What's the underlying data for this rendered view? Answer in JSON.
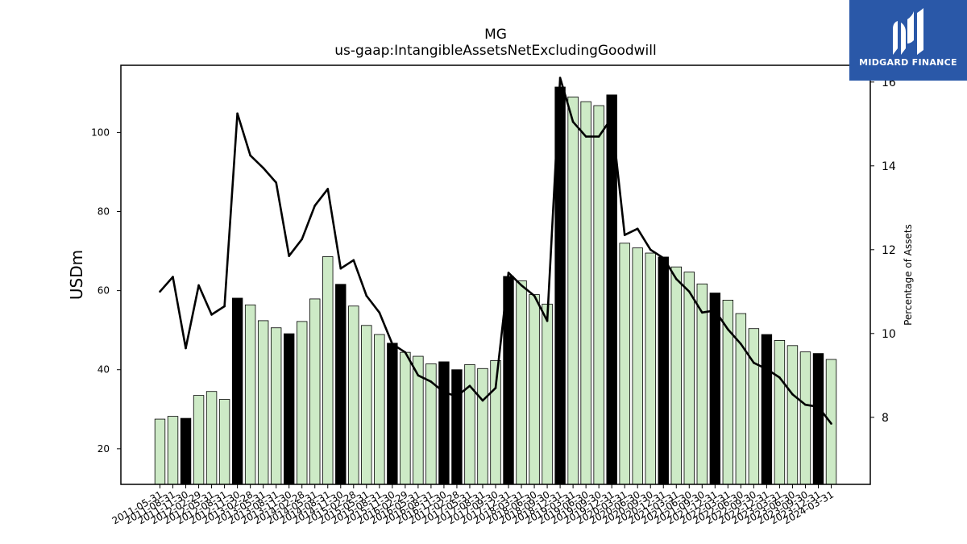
{
  "logo": {
    "text": "MIDGARD FINANCE",
    "color": "#2a58a8"
  },
  "chart_data": {
    "type": "bar",
    "title": "MG",
    "subtitle": "us-gaap:IntangibleAssetsNetExcludingGoodwill",
    "ylabel": "USDm",
    "y2label": "Percentage of Assets",
    "ylim": [
      11,
      117
    ],
    "y2lim": [
      6.4,
      16.4
    ],
    "yticks": [
      20,
      40,
      60,
      80,
      100
    ],
    "y2ticks": [
      8,
      10,
      12,
      14,
      16
    ],
    "grid": false,
    "colors": {
      "bar_light": "#cdeac6",
      "bar_dark": "#000000",
      "line": "#000000"
    },
    "categories": [
      "2011-05-31",
      "2011-08-31",
      "2011-11-30",
      "2012-02-29",
      "2012-05-31",
      "2012-08-31",
      "2012-11-30",
      "2013-02-28",
      "2013-05-31",
      "2013-08-31",
      "2013-11-30",
      "2014-02-28",
      "2014-05-31",
      "2014-08-31",
      "2014-11-30",
      "2015-02-28",
      "2015-05-31",
      "2015-08-31",
      "2015-11-30",
      "2016-02-29",
      "2016-05-31",
      "2016-08-31",
      "2016-11-30",
      "2017-02-28",
      "2017-05-31",
      "2017-08-31",
      "2017-09-30",
      "2017-12-31",
      "2018-03-31",
      "2018-06-30",
      "2018-09-30",
      "2018-12-31",
      "2019-03-31",
      "2019-06-30",
      "2019-09-30",
      "2019-12-31",
      "2020-03-31",
      "2020-06-30",
      "2020-09-30",
      "2020-12-31",
      "2021-03-31",
      "2021-06-30",
      "2021-09-30",
      "2021-12-31",
      "2022-03-31",
      "2022-06-30",
      "2022-09-30",
      "2022-12-31",
      "2023-03-31",
      "2023-06-30",
      "2023-09-30",
      "2023-12-31",
      "2024-03-31"
    ],
    "xtick_labels": [
      "2011-05-31",
      "2011-08-31",
      "2011-11-30",
      "2012-02-29",
      "2012-05-31",
      "2012-08-31",
      "2012-11-30",
      "2013-02-28",
      "2013-05-31",
      "2013-08-31",
      "2013-11-30",
      "2014-02-28",
      "2014-05-31",
      "2014-08-31",
      "2014-11-30",
      "2015-02-28",
      "2015-05-31",
      "2015-08-31",
      "2015-11-30",
      "2016-02-29",
      "2016-05-31",
      "2016-08-31",
      "2016-11-30",
      "2017-02-28",
      "2017-05-31",
      "2017-08-31",
      "2017-09-30",
      "2017-12-31",
      "2018-03-31",
      "2018-06-30",
      "2018-09-30",
      "2018-12-31",
      "2019-03-31",
      "2019-06-30",
      "2019-09-30",
      "2019-12-31",
      "2020-03-31",
      "2020-06-30",
      "2020-09-30",
      "2020-12-31",
      "2021-03-31",
      "2021-06-30",
      "2021-09-30",
      "2021-12-31",
      "2022-03-31",
      "2022-06-30",
      "2022-09-30",
      "2022-12-31",
      "2023-03-31",
      "2023-06-30",
      "2023-09-30",
      "2023-12-31",
      "2024-03-31"
    ],
    "series": [
      {
        "type": "bar",
        "values": [
          27.5,
          28.2,
          27.7,
          33.5,
          34.5,
          32.5,
          58.1,
          56.4,
          52.4,
          50.6,
          49.1,
          52.2,
          57.9,
          68.6,
          61.6,
          56.1,
          51.2,
          48.9,
          46.7,
          44.4,
          43.4,
          41.5,
          42.0,
          40.0,
          41.3,
          40.3,
          42.3,
          63.6,
          62.5,
          59.0,
          56.6,
          111.5,
          109.0,
          107.8,
          106.8,
          109.5,
          72.0,
          70.8,
          69.5,
          68.5,
          66.0,
          64.7,
          61.7,
          59.4,
          57.6,
          54.2,
          50.4,
          48.9,
          47.4,
          46.1,
          44.5,
          44.1,
          42.6
        ],
        "highlight": [
          false,
          false,
          true,
          false,
          false,
          false,
          true,
          false,
          false,
          false,
          true,
          false,
          false,
          false,
          true,
          false,
          false,
          false,
          true,
          false,
          false,
          false,
          true,
          true,
          false,
          false,
          false,
          true,
          false,
          false,
          false,
          true,
          false,
          false,
          false,
          true,
          false,
          false,
          false,
          true,
          false,
          false,
          false,
          true,
          false,
          false,
          false,
          true,
          false,
          false,
          false,
          true,
          false
        ]
      },
      {
        "type": "line",
        "axis": "right",
        "values": [
          11.0,
          11.35,
          9.65,
          11.15,
          10.45,
          10.65,
          15.25,
          14.25,
          13.95,
          13.6,
          11.85,
          12.25,
          13.05,
          13.45,
          11.55,
          11.75,
          10.9,
          10.5,
          9.75,
          9.55,
          9.0,
          8.85,
          8.6,
          8.5,
          8.75,
          8.4,
          8.7,
          11.45,
          11.15,
          10.9,
          10.3,
          16.1,
          15.05,
          14.7,
          14.7,
          15.15,
          12.35,
          12.5,
          12.0,
          11.8,
          11.3,
          11.0,
          10.5,
          10.55,
          10.1,
          9.75,
          9.3,
          9.15,
          8.95,
          8.55,
          8.3,
          8.25,
          7.85
        ]
      }
    ]
  }
}
